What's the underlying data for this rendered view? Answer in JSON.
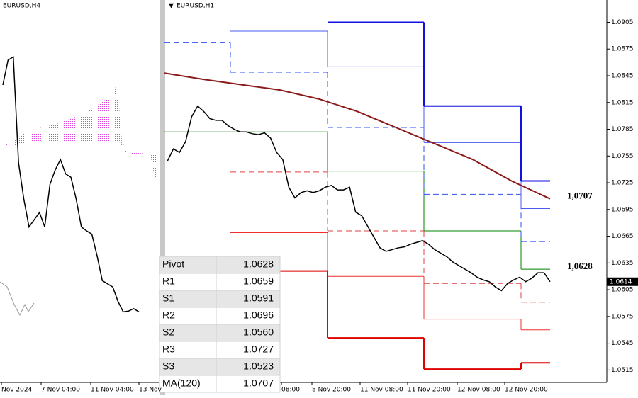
{
  "chart_data": [
    {
      "type": "line",
      "title": "EURUSD,H4",
      "values": [
        1.0897,
        1.0928,
        1.0932,
        1.08,
        1.0755,
        1.072,
        1.0729,
        1.0738,
        1.072,
        1.0773,
        1.0791,
        1.0804,
        1.0786,
        1.0782,
        1.0755,
        1.072,
        1.0715,
        1.0711,
        1.0684,
        1.0653,
        1.0649,
        1.0645,
        1.0627,
        1.0614,
        1.0615,
        1.0618,
        1.0614
      ],
      "color": "#000000",
      "ylim": [
        1.0526,
        1.1003
      ],
      "x_labels": [
        "Nov 2024",
        "7 Nov 04:00",
        "11 Nov 04:00",
        "13 Nov"
      ]
    },
    {
      "type": "line",
      "title": "EURUSD,H1",
      "values": [
        1.0749,
        1.0763,
        1.0759,
        1.0771,
        1.0799,
        1.0811,
        1.0805,
        1.0797,
        1.0795,
        1.0795,
        1.0789,
        1.0785,
        1.0782,
        1.0782,
        1.078,
        1.0779,
        1.0781,
        1.0775,
        1.0759,
        1.0751,
        1.072,
        1.0708,
        1.0714,
        1.0716,
        1.0714,
        1.0716,
        1.072,
        1.0722,
        1.0717,
        1.0717,
        1.072,
        1.0692,
        1.0688,
        1.0676,
        1.0664,
        1.0652,
        1.0648,
        1.065,
        1.0652,
        1.0653,
        1.0656,
        1.0658,
        1.066,
        1.0656,
        1.065,
        1.0646,
        1.0642,
        1.0636,
        1.0632,
        1.0628,
        1.0624,
        1.0619,
        1.0616,
        1.0614,
        1.0608,
        1.0604,
        1.0612,
        1.0616,
        1.0619,
        1.0614,
        1.0618,
        1.0624,
        1.0624,
        1.0614
      ],
      "color": "#000000",
      "ylim": [
        1.0501,
        1.093
      ],
      "yticks": [
        1.0905,
        1.0875,
        1.0845,
        1.0815,
        1.0785,
        1.0755,
        1.0725,
        1.0695,
        1.0665,
        1.0635,
        1.0605,
        1.0575,
        1.0545,
        1.0515
      ],
      "last_price": 1.0614,
      "x_labels": [
        "08:00",
        "8 Nov 20:00",
        "11 Nov 08:00",
        "11 Nov 20:00",
        "12 Nov 08:00",
        "12 Nov 20:00"
      ],
      "levels": [
        {
          "label": "Pivot",
          "value": 1.0628,
          "history": [
            1.0782,
            1.0782,
            1.0738,
            1.0671
          ],
          "color": "#008000",
          "style": "solid"
        },
        {
          "label": "R1",
          "value": 1.0659,
          "history": [
            1.0882,
            1.0849,
            1.0787,
            1.0712
          ],
          "color": "#3050f0",
          "style": "dashed"
        },
        {
          "label": "S1",
          "value": 1.0591,
          "history": [
            null,
            1.0737,
            1.0671,
            1.0612
          ],
          "color": "#e04040",
          "style": "dashed"
        },
        {
          "label": "R2",
          "value": 1.0696,
          "history": [
            null,
            1.0895,
            1.0855,
            1.077
          ],
          "color": "#4a5cf0",
          "style": "thin"
        },
        {
          "label": "S2",
          "value": {
            "value": 1.056,
            "label": "1.0560"
          },
          "history": [
            null,
            1.0669,
            1.062,
            1.0572
          ],
          "color": "#f03030",
          "style": "thin"
        },
        {
          "label": "R3",
          "value": 1.0727,
          "history": [
            null,
            null,
            1.0905,
            1.0811
          ],
          "color": "#1010e0",
          "style": "thick"
        },
        {
          "label": "S3",
          "value": 1.0523,
          "history": [
            null,
            1.0626,
            1.0551,
            1.0516
          ],
          "color": "#e00000",
          "style": "thick"
        }
      ],
      "ma": {
        "label": "MA(120)",
        "value": 1.0707,
        "history": [
          1.0848,
          1.0841,
          1.0835,
          1.0829,
          1.0819,
          1.0805,
          1.0787,
          1.0769,
          1.0751,
          1.0727
        ],
        "color": "#8b1a1a"
      },
      "annotations": [
        "1,0707",
        "1,0628"
      ]
    }
  ]
}
